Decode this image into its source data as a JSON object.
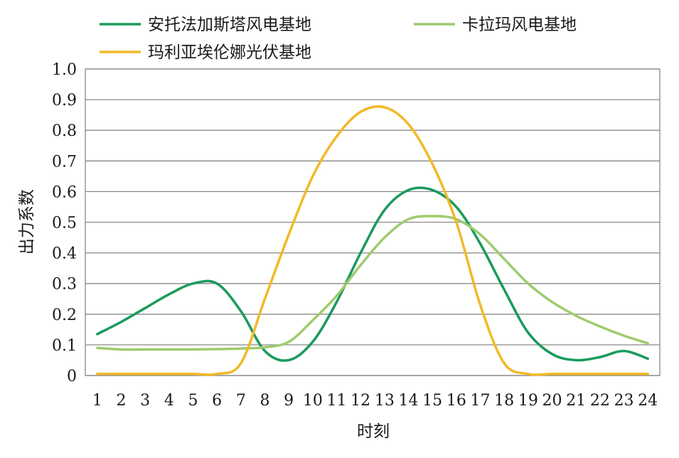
{
  "chart_data": {
    "type": "line",
    "xlabel": "时刻",
    "ylabel": "出力系数",
    "ylim": [
      0,
      1.0
    ],
    "yticks": [
      "0",
      "0.1",
      "0.2",
      "0.3",
      "0.4",
      "0.5",
      "0.6",
      "0.7",
      "0.8",
      "0.9",
      "1.0"
    ],
    "x": [
      1,
      2,
      3,
      4,
      5,
      6,
      7,
      8,
      9,
      10,
      11,
      12,
      13,
      14,
      15,
      16,
      17,
      18,
      19,
      20,
      21,
      22,
      23,
      24
    ],
    "grid": true,
    "legend_position": "top",
    "series": [
      {
        "name": "安托法加斯塔风电基地",
        "color": "#1a9a5c",
        "values": [
          0.135,
          0.175,
          0.22,
          0.265,
          0.3,
          0.3,
          0.21,
          0.08,
          0.05,
          0.11,
          0.24,
          0.4,
          0.54,
          0.605,
          0.605,
          0.55,
          0.43,
          0.28,
          0.14,
          0.07,
          0.05,
          0.06,
          0.08,
          0.055
        ]
      },
      {
        "name": "卡拉玛风电基地",
        "color": "#9ecb6e",
        "values": [
          0.09,
          0.085,
          0.085,
          0.085,
          0.085,
          0.086,
          0.088,
          0.092,
          0.11,
          0.18,
          0.26,
          0.36,
          0.45,
          0.51,
          0.52,
          0.51,
          0.46,
          0.38,
          0.3,
          0.24,
          0.195,
          0.16,
          0.13,
          0.105
        ]
      },
      {
        "name": "玛利亚埃伦娜光伏基地",
        "color": "#f2b928",
        "values": [
          0.005,
          0.005,
          0.005,
          0.005,
          0.005,
          0.005,
          0.04,
          0.25,
          0.46,
          0.65,
          0.78,
          0.86,
          0.875,
          0.82,
          0.69,
          0.5,
          0.23,
          0.04,
          0.005,
          0.005,
          0.005,
          0.005,
          0.005,
          0.005
        ]
      }
    ]
  }
}
